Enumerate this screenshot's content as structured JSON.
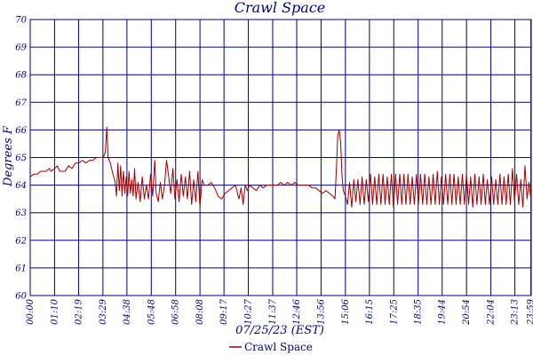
{
  "chart_data": {
    "type": "line",
    "title": "Crawl Space",
    "xlabel": "07/25/23 (EST)",
    "ylabel": "Degrees F",
    "ylim": [
      60,
      70
    ],
    "xlim_minutes": [
      0,
      1440
    ],
    "y_ticks": [
      "60",
      "61",
      "62",
      "63",
      "64",
      "65",
      "66",
      "67",
      "68",
      "69",
      "70"
    ],
    "x_ticks": [
      {
        "label": "00:00",
        "minute": 0
      },
      {
        "label": "01:10",
        "minute": 70
      },
      {
        "label": "02:19",
        "minute": 139
      },
      {
        "label": "03:29",
        "minute": 209
      },
      {
        "label": "04:38",
        "minute": 278
      },
      {
        "label": "05:48",
        "minute": 348
      },
      {
        "label": "06:58",
        "minute": 418
      },
      {
        "label": "08:08",
        "minute": 488
      },
      {
        "label": "09:17",
        "minute": 557
      },
      {
        "label": "10:27",
        "minute": 627
      },
      {
        "label": "11:37",
        "minute": 697
      },
      {
        "label": "12:46",
        "minute": 766
      },
      {
        "label": "13:56",
        "minute": 836
      },
      {
        "label": "15:06",
        "minute": 906
      },
      {
        "label": "16:15",
        "minute": 975
      },
      {
        "label": "17:25",
        "minute": 1045
      },
      {
        "label": "18:35",
        "minute": 1115
      },
      {
        "label": "19:44",
        "minute": 1184
      },
      {
        "label": "20:54",
        "minute": 1254
      },
      {
        "label": "22:04",
        "minute": 1324
      },
      {
        "label": "23:13",
        "minute": 1393
      },
      {
        "label": "23:59",
        "minute": 1439
      }
    ],
    "grid": true,
    "legend_position": "bottom-center",
    "series": [
      {
        "name": "Crawl Space",
        "color": "#a00000",
        "points": [
          [
            0,
            64.3
          ],
          [
            10,
            64.4
          ],
          [
            20,
            64.4
          ],
          [
            30,
            64.5
          ],
          [
            45,
            64.5
          ],
          [
            55,
            64.6
          ],
          [
            60,
            64.5
          ],
          [
            70,
            64.6
          ],
          [
            78,
            64.7
          ],
          [
            85,
            64.5
          ],
          [
            100,
            64.5
          ],
          [
            110,
            64.7
          ],
          [
            120,
            64.6
          ],
          [
            130,
            64.8
          ],
          [
            140,
            64.8
          ],
          [
            150,
            64.9
          ],
          [
            160,
            64.8
          ],
          [
            170,
            64.9
          ],
          [
            180,
            64.9
          ],
          [
            190,
            65.0
          ],
          [
            200,
            65.0
          ],
          [
            210,
            65.0
          ],
          [
            216,
            65.2
          ],
          [
            220,
            66.1
          ],
          [
            224,
            65.0
          ],
          [
            230,
            64.8
          ],
          [
            238,
            64.4
          ],
          [
            244,
            64.1
          ],
          [
            248,
            63.6
          ],
          [
            252,
            64.8
          ],
          [
            256,
            63.8
          ],
          [
            260,
            64.7
          ],
          [
            264,
            63.6
          ],
          [
            268,
            64.5
          ],
          [
            272,
            63.7
          ],
          [
            276,
            64.3
          ],
          [
            280,
            63.6
          ],
          [
            284,
            64.5
          ],
          [
            288,
            63.7
          ],
          [
            292,
            64.2
          ],
          [
            296,
            63.6
          ],
          [
            300,
            64.6
          ],
          [
            304,
            63.5
          ],
          [
            310,
            64.1
          ],
          [
            316,
            63.4
          ],
          [
            322,
            64.3
          ],
          [
            328,
            63.5
          ],
          [
            334,
            64.0
          ],
          [
            340,
            63.5
          ],
          [
            346,
            64.4
          ],
          [
            352,
            63.6
          ],
          [
            358,
            64.9
          ],
          [
            362,
            63.7
          ],
          [
            368,
            63.4
          ],
          [
            374,
            64.1
          ],
          [
            380,
            63.5
          ],
          [
            386,
            64.0
          ],
          [
            392,
            64.9
          ],
          [
            398,
            64.3
          ],
          [
            404,
            63.7
          ],
          [
            410,
            64.6
          ],
          [
            416,
            63.5
          ],
          [
            422,
            64.2
          ],
          [
            428,
            63.4
          ],
          [
            434,
            64.4
          ],
          [
            440,
            63.6
          ],
          [
            446,
            64.3
          ],
          [
            452,
            63.5
          ],
          [
            458,
            64.5
          ],
          [
            464,
            63.3
          ],
          [
            470,
            64.2
          ],
          [
            476,
            63.4
          ],
          [
            482,
            64.5
          ],
          [
            488,
            63.2
          ],
          [
            494,
            64.2
          ],
          [
            500,
            64.0
          ],
          [
            510,
            64.0
          ],
          [
            520,
            64.1
          ],
          [
            530,
            63.9
          ],
          [
            540,
            63.6
          ],
          [
            550,
            63.5
          ],
          [
            560,
            63.7
          ],
          [
            570,
            63.8
          ],
          [
            580,
            63.9
          ],
          [
            590,
            64.0
          ],
          [
            600,
            63.5
          ],
          [
            606,
            63.9
          ],
          [
            612,
            63.3
          ],
          [
            618,
            64.0
          ],
          [
            624,
            63.8
          ],
          [
            630,
            64.0
          ],
          [
            640,
            63.9
          ],
          [
            650,
            63.8
          ],
          [
            660,
            64.0
          ],
          [
            670,
            63.9
          ],
          [
            680,
            64.0
          ],
          [
            690,
            64.0
          ],
          [
            700,
            64.0
          ],
          [
            710,
            64.0
          ],
          [
            720,
            64.1
          ],
          [
            730,
            64.0
          ],
          [
            740,
            64.1
          ],
          [
            750,
            64.0
          ],
          [
            760,
            64.1
          ],
          [
            770,
            64.0
          ],
          [
            780,
            64.0
          ],
          [
            790,
            64.0
          ],
          [
            800,
            64.0
          ],
          [
            810,
            63.9
          ],
          [
            820,
            63.9
          ],
          [
            830,
            63.8
          ],
          [
            840,
            63.7
          ],
          [
            850,
            63.8
          ],
          [
            860,
            63.7
          ],
          [
            870,
            63.6
          ],
          [
            876,
            63.5
          ],
          [
            880,
            64.6
          ],
          [
            884,
            65.8
          ],
          [
            888,
            66.0
          ],
          [
            892,
            65.6
          ],
          [
            896,
            64.4
          ],
          [
            900,
            63.8
          ],
          [
            906,
            63.6
          ],
          [
            912,
            63.3
          ],
          [
            918,
            64.1
          ],
          [
            924,
            63.2
          ],
          [
            930,
            64.2
          ],
          [
            936,
            63.4
          ],
          [
            942,
            64.2
          ],
          [
            948,
            63.3
          ],
          [
            954,
            64.3
          ],
          [
            960,
            63.3
          ],
          [
            966,
            64.2
          ],
          [
            972,
            63.4
          ],
          [
            978,
            64.4
          ],
          [
            984,
            63.3
          ],
          [
            990,
            64.3
          ],
          [
            996,
            63.3
          ],
          [
            1002,
            64.4
          ],
          [
            1008,
            63.3
          ],
          [
            1014,
            64.4
          ],
          [
            1020,
            63.3
          ],
          [
            1026,
            64.3
          ],
          [
            1032,
            63.3
          ],
          [
            1038,
            64.4
          ],
          [
            1044,
            63.2
          ],
          [
            1050,
            64.4
          ],
          [
            1056,
            63.3
          ],
          [
            1062,
            64.4
          ],
          [
            1068,
            63.3
          ],
          [
            1074,
            64.4
          ],
          [
            1080,
            63.3
          ],
          [
            1086,
            64.4
          ],
          [
            1092,
            63.3
          ],
          [
            1098,
            64.3
          ],
          [
            1104,
            63.3
          ],
          [
            1110,
            64.4
          ],
          [
            1116,
            63.3
          ],
          [
            1122,
            64.4
          ],
          [
            1128,
            63.3
          ],
          [
            1134,
            64.4
          ],
          [
            1140,
            63.3
          ],
          [
            1146,
            64.3
          ],
          [
            1152,
            63.3
          ],
          [
            1158,
            64.4
          ],
          [
            1164,
            63.3
          ],
          [
            1170,
            64.5
          ],
          [
            1176,
            63.3
          ],
          [
            1182,
            64.3
          ],
          [
            1188,
            63.3
          ],
          [
            1194,
            64.4
          ],
          [
            1200,
            63.3
          ],
          [
            1206,
            64.4
          ],
          [
            1212,
            63.3
          ],
          [
            1218,
            64.4
          ],
          [
            1224,
            63.3
          ],
          [
            1230,
            64.3
          ],
          [
            1236,
            63.3
          ],
          [
            1242,
            64.4
          ],
          [
            1248,
            63.3
          ],
          [
            1254,
            64.4
          ],
          [
            1260,
            63.3
          ],
          [
            1266,
            64.3
          ],
          [
            1272,
            63.2
          ],
          [
            1278,
            64.4
          ],
          [
            1284,
            63.3
          ],
          [
            1290,
            64.3
          ],
          [
            1296,
            63.3
          ],
          [
            1302,
            64.4
          ],
          [
            1308,
            63.3
          ],
          [
            1314,
            64.2
          ],
          [
            1320,
            63.3
          ],
          [
            1326,
            64.3
          ],
          [
            1332,
            63.3
          ],
          [
            1338,
            64.2
          ],
          [
            1344,
            63.3
          ],
          [
            1350,
            64.4
          ],
          [
            1356,
            63.3
          ],
          [
            1362,
            64.3
          ],
          [
            1368,
            63.3
          ],
          [
            1374,
            64.4
          ],
          [
            1380,
            63.3
          ],
          [
            1386,
            64.6
          ],
          [
            1392,
            63.4
          ],
          [
            1398,
            64.4
          ],
          [
            1404,
            63.3
          ],
          [
            1410,
            64.2
          ],
          [
            1416,
            63.2
          ],
          [
            1422,
            64.7
          ],
          [
            1428,
            63.5
          ],
          [
            1434,
            64.1
          ],
          [
            1439,
            63.5
          ]
        ]
      }
    ]
  },
  "colors": {
    "grid": "#000080",
    "series": "#a00000",
    "text": "#000080"
  }
}
